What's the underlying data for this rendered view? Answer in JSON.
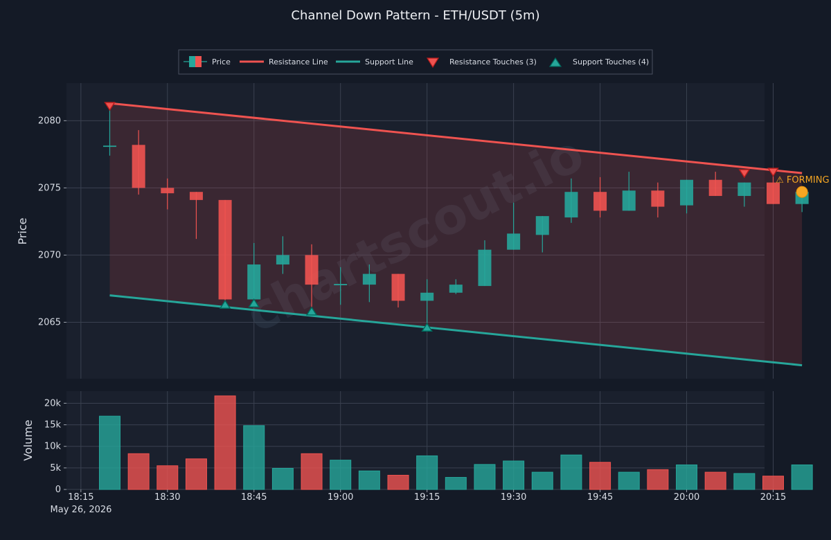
{
  "chart_data": {
    "type": "candlestick",
    "title": "Channel Down Pattern - ETH/USDT (5m)",
    "ylabel": "Price",
    "volume_ylabel": "Volume",
    "date_label": "May 26, 2026",
    "x_tick_labels": [
      "18:15",
      "18:30",
      "18:45",
      "19:00",
      "19:15",
      "19:30",
      "19:45",
      "20:00",
      "20:15"
    ],
    "y_ticks": [
      2065,
      2070,
      2075,
      2080
    ],
    "volume_ticks": [
      0,
      5000,
      10000,
      15000,
      20000
    ],
    "volume_tick_labels": [
      "0",
      "5k",
      "10k",
      "15k",
      "20k"
    ],
    "ylim": [
      2060.8,
      2082.8
    ],
    "volume_ylim": [
      0,
      22800
    ],
    "xlim_minutes_from_1815": [
      -2.5,
      118.5
    ],
    "colors": {
      "up": "#26a69a",
      "down": "#ef5350",
      "resistance": "#ef5350",
      "support": "#26a69a",
      "forming": "#f5a623",
      "channel_fill": "#ef5350"
    },
    "legend": {
      "price": "Price",
      "resistance_line": "Resistance Line",
      "support_line": "Support Line",
      "resistance_touches": "Resistance Touches (3)",
      "support_touches": "Support Touches (4)"
    },
    "candles": [
      {
        "time": "18:20",
        "open": 2078.1,
        "high": 2081.1,
        "low": 2077.4,
        "close": 2078.1,
        "volume": 17000
      },
      {
        "time": "18:25",
        "open": 2078.2,
        "high": 2079.3,
        "low": 2074.5,
        "close": 2075.0,
        "volume": 8300
      },
      {
        "time": "18:30",
        "open": 2075.0,
        "high": 2075.7,
        "low": 2073.4,
        "close": 2074.6,
        "volume": 5500
      },
      {
        "time": "18:35",
        "open": 2074.7,
        "high": 2074.7,
        "low": 2071.2,
        "close": 2074.1,
        "volume": 7100
      },
      {
        "time": "18:40",
        "open": 2074.1,
        "high": 2074.1,
        "low": 2066.6,
        "close": 2066.7,
        "volume": 21700
      },
      {
        "time": "18:45",
        "open": 2066.7,
        "high": 2070.9,
        "low": 2066.5,
        "close": 2069.3,
        "volume": 14800
      },
      {
        "time": "18:50",
        "open": 2069.3,
        "high": 2071.4,
        "low": 2068.6,
        "close": 2070.0,
        "volume": 4900
      },
      {
        "time": "18:55",
        "open": 2070.0,
        "high": 2070.8,
        "low": 2066.0,
        "close": 2067.8,
        "volume": 8300
      },
      {
        "time": "19:00",
        "open": 2067.8,
        "high": 2069.1,
        "low": 2066.3,
        "close": 2067.8,
        "volume": 6800
      },
      {
        "time": "19:05",
        "open": 2067.8,
        "high": 2069.3,
        "low": 2066.5,
        "close": 2068.6,
        "volume": 4300
      },
      {
        "time": "19:10",
        "open": 2068.6,
        "high": 2068.6,
        "low": 2066.1,
        "close": 2066.6,
        "volume": 3300
      },
      {
        "time": "19:15",
        "open": 2066.6,
        "high": 2068.2,
        "low": 2064.9,
        "close": 2067.2,
        "volume": 7800
      },
      {
        "time": "19:20",
        "open": 2067.2,
        "high": 2068.2,
        "low": 2067.1,
        "close": 2067.8,
        "volume": 2800
      },
      {
        "time": "19:25",
        "open": 2067.7,
        "high": 2071.1,
        "low": 2067.7,
        "close": 2070.4,
        "volume": 5800
      },
      {
        "time": "19:30",
        "open": 2070.4,
        "high": 2073.9,
        "low": 2070.4,
        "close": 2071.6,
        "volume": 6600
      },
      {
        "time": "19:35",
        "open": 2071.5,
        "high": 2072.9,
        "low": 2070.2,
        "close": 2072.9,
        "volume": 4000
      },
      {
        "time": "19:40",
        "open": 2072.8,
        "high": 2075.7,
        "low": 2072.4,
        "close": 2074.7,
        "volume": 8000
      },
      {
        "time": "19:45",
        "open": 2074.7,
        "high": 2075.8,
        "low": 2072.8,
        "close": 2073.3,
        "volume": 6300
      },
      {
        "time": "19:50",
        "open": 2073.3,
        "high": 2076.2,
        "low": 2073.3,
        "close": 2074.8,
        "volume": 4000
      },
      {
        "time": "19:55",
        "open": 2074.8,
        "high": 2075.4,
        "low": 2072.8,
        "close": 2073.6,
        "volume": 4600
      },
      {
        "time": "20:00",
        "open": 2073.7,
        "high": 2075.6,
        "low": 2073.1,
        "close": 2075.6,
        "volume": 5700
      },
      {
        "time": "20:05",
        "open": 2075.6,
        "high": 2076.2,
        "low": 2074.4,
        "close": 2074.4,
        "volume": 4000
      },
      {
        "time": "20:10",
        "open": 2074.4,
        "high": 2075.4,
        "low": 2073.6,
        "close": 2075.4,
        "volume": 3700
      },
      {
        "time": "20:15",
        "open": 2075.4,
        "high": 2076.4,
        "low": 2073.8,
        "close": 2073.8,
        "volume": 3100
      },
      {
        "time": "20:20",
        "open": 2073.8,
        "high": 2074.8,
        "low": 2073.2,
        "close": 2074.7,
        "volume": 5700
      }
    ],
    "resistance_line": {
      "start": {
        "time": "18:20",
        "price": 2081.3
      },
      "end": {
        "time": "20:20",
        "price": 2076.1
      }
    },
    "support_line": {
      "start": {
        "time": "18:20",
        "price": 2067.0
      },
      "end": {
        "time": "20:20",
        "price": 2061.8
      }
    },
    "resistance_touches": [
      {
        "time": "18:20",
        "price": 2081.1
      },
      {
        "time": "20:10",
        "price": 2076.1
      },
      {
        "time": "20:15",
        "price": 2076.2
      }
    ],
    "support_touches": [
      {
        "time": "18:40",
        "price": 2066.3
      },
      {
        "time": "18:45",
        "price": 2066.4
      },
      {
        "time": "18:55",
        "price": 2065.8
      },
      {
        "time": "19:15",
        "price": 2064.6
      }
    ],
    "forming_marker": {
      "time": "20:20",
      "price": 2074.7,
      "label": "⚠ FORMING"
    }
  },
  "watermark": "chartscout.io"
}
